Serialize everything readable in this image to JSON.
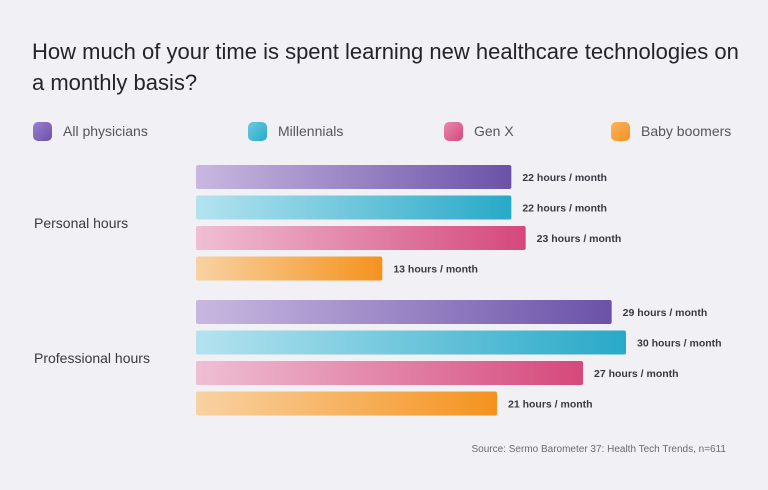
{
  "chart_data": {
    "type": "bar",
    "orientation": "horizontal",
    "title": "How much of your time is spent learning new healthcare technologies on a monthly basis?",
    "categories": [
      "Personal hours",
      "Professional hours"
    ],
    "series": [
      {
        "name": "All physicians",
        "values": [
          22,
          29
        ],
        "labels": [
          "22 hours / month",
          "29 hours / month"
        ],
        "color": "#6b52a8",
        "color_light": "#c8b8e0"
      },
      {
        "name": "Millennials",
        "values": [
          22,
          30
        ],
        "labels": [
          "22 hours / month",
          "30 hours / month"
        ],
        "color": "#28a9c8",
        "color_light": "#b4e3ef"
      },
      {
        "name": "Gen X",
        "values": [
          23,
          27
        ],
        "labels": [
          "23 hours / month",
          "27 hours / month"
        ],
        "color": "#d5487a",
        "color_light": "#efbfd3"
      },
      {
        "name": "Baby boomers",
        "values": [
          13,
          21
        ],
        "labels": [
          "13 hours / month",
          "21 hours / month"
        ],
        "color": "#f5921e",
        "color_light": "#f8d2a2"
      }
    ],
    "xlim": [
      0,
      30
    ],
    "legend_position": "top",
    "grid": false,
    "source": "Source: Sermo Barometer 37: Health Tech Trends, n=611"
  }
}
